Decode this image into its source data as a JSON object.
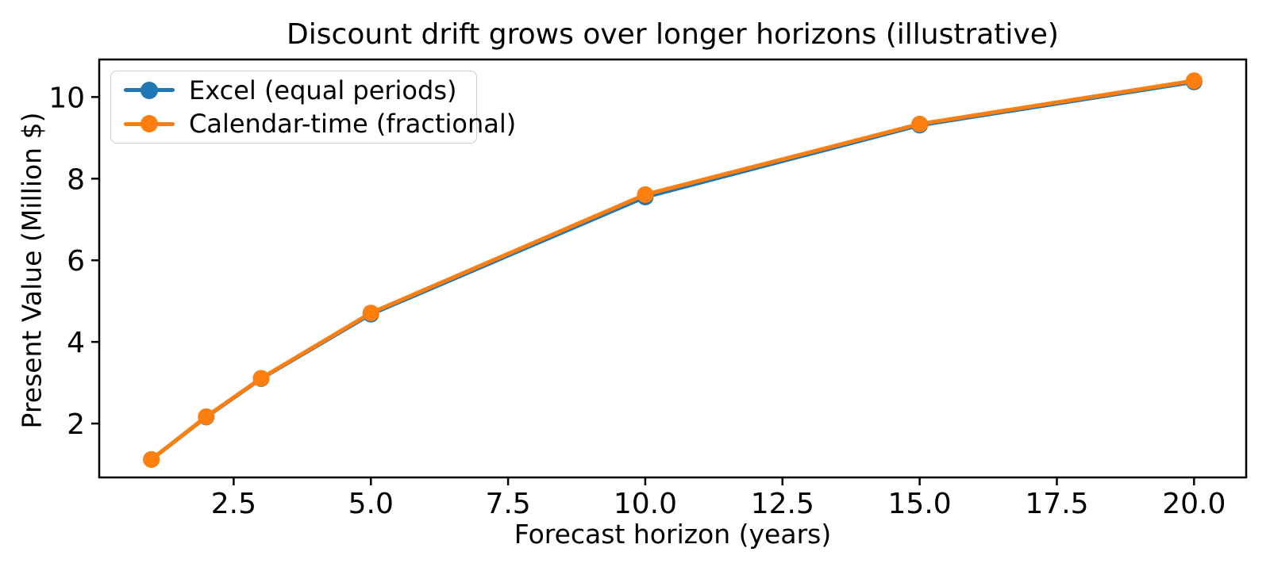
{
  "chart_data": {
    "type": "line",
    "title": "Discount drift grows over longer horizons (illustrative)",
    "xlabel": "Forecast horizon (years)",
    "ylabel": "Present Value (Million $)",
    "x": [
      1,
      2,
      3,
      5,
      10,
      15,
      20
    ],
    "series": [
      {
        "name": "Excel (equal periods)",
        "color": "#1f77b4",
        "values": [
          1.12,
          2.16,
          3.1,
          4.68,
          7.55,
          9.31,
          10.37
        ]
      },
      {
        "name": "Calendar-time (fractional)",
        "color": "#ff7f0e",
        "values": [
          1.12,
          2.17,
          3.11,
          4.71,
          7.61,
          9.34,
          10.4
        ]
      }
    ],
    "xticks": [
      2.5,
      5.0,
      7.5,
      10.0,
      12.5,
      15.0,
      17.5,
      20.0
    ],
    "xtick_labels": [
      "2.5",
      "5.0",
      "7.5",
      "10.0",
      "12.5",
      "15.0",
      "17.5",
      "20.0"
    ],
    "yticks": [
      2,
      4,
      6,
      8,
      10
    ],
    "ytick_labels": [
      "2",
      "4",
      "6",
      "8",
      "10"
    ],
    "xlim": [
      0.05,
      20.95
    ],
    "ylim": [
      0.68,
      10.92
    ],
    "grid": false,
    "legend_position": "upper left",
    "marker": "o",
    "line_width": 5,
    "marker_radius": 10.5,
    "axis_color": "#000000"
  }
}
